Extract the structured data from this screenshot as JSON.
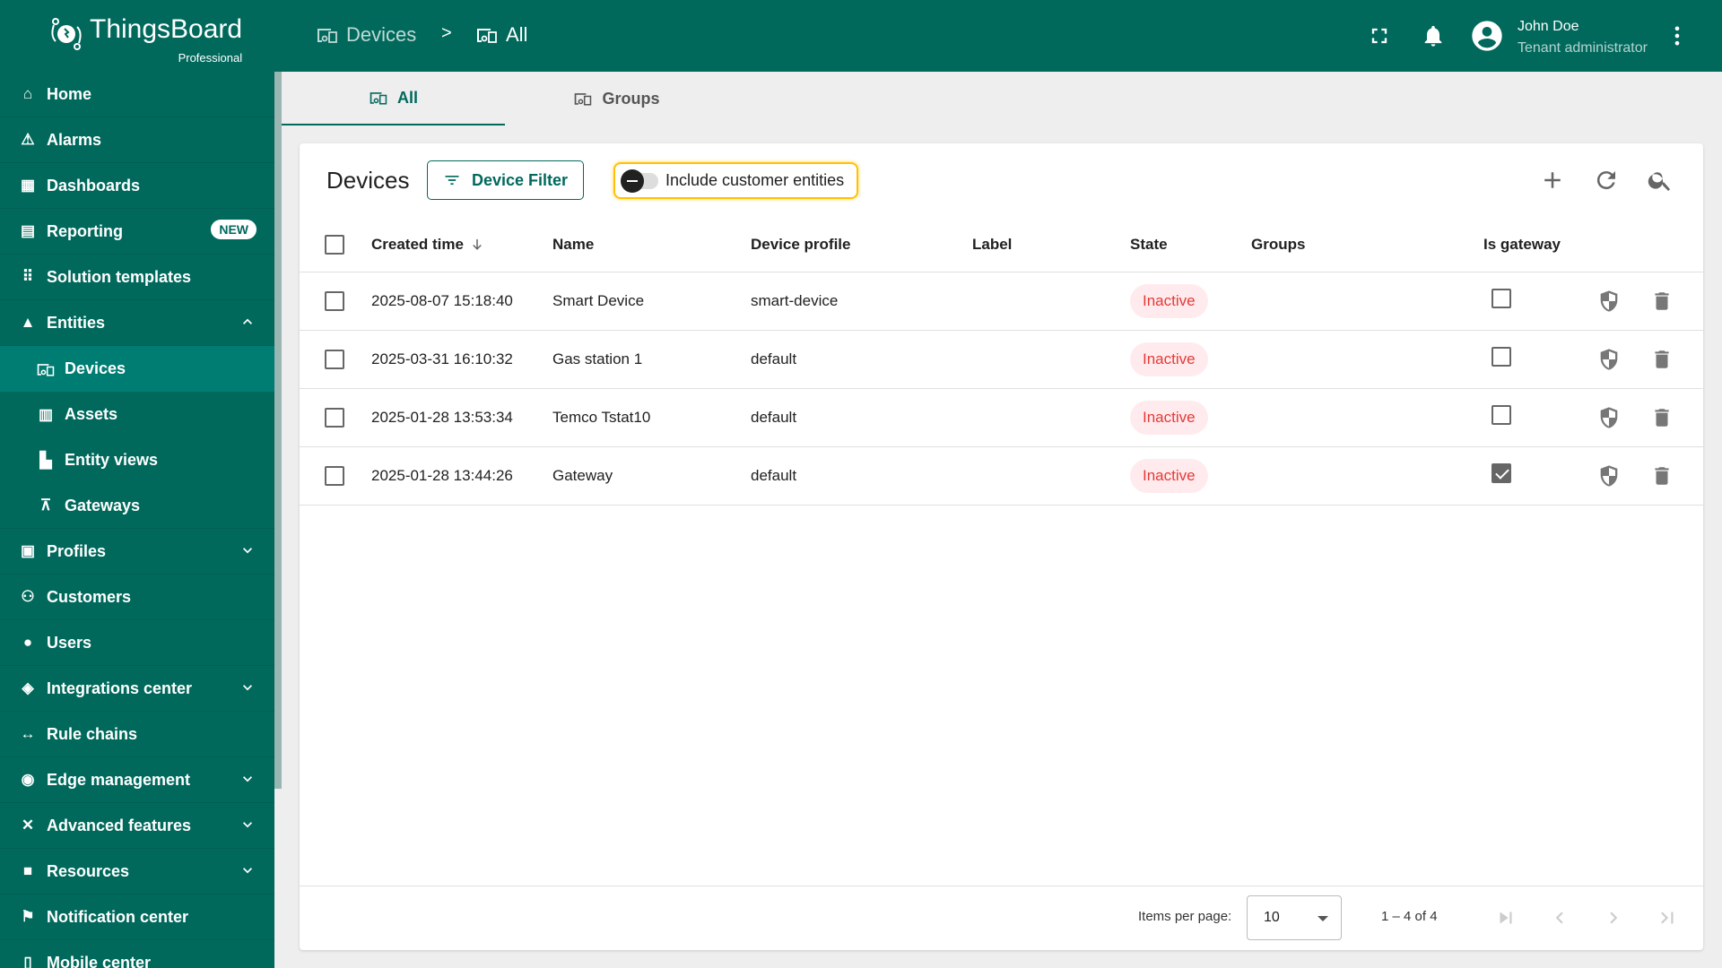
{
  "brand": {
    "name": "ThingsBoard",
    "edition": "Professional"
  },
  "colors": {
    "primary": "#00695c",
    "active_nav": "#007d72",
    "inactive_text": "#e53935",
    "inactive_bg": "#ffebee",
    "highlight": "#ffc107"
  },
  "breadcrumb": [
    {
      "label": "Devices",
      "icon": "devices-icon"
    },
    {
      "label": "All",
      "icon": "devices-icon"
    }
  ],
  "breadcrumb_sep": ">",
  "user": {
    "name": "John Doe",
    "role": "Tenant administrator"
  },
  "sidebar": {
    "items": [
      {
        "label": "Home",
        "icon": "home-icon"
      },
      {
        "label": "Alarms",
        "icon": "alarm-icon"
      },
      {
        "label": "Dashboards",
        "icon": "dashboard-icon"
      },
      {
        "label": "Reporting",
        "icon": "reporting-icon",
        "badge": "NEW"
      },
      {
        "label": "Solution templates",
        "icon": "apps-icon"
      },
      {
        "label": "Entities",
        "icon": "category-icon",
        "chevron": "up"
      },
      {
        "label": "Devices",
        "icon": "devices-icon",
        "sub": true,
        "active": true
      },
      {
        "label": "Assets",
        "icon": "assets-icon",
        "sub": true
      },
      {
        "label": "Entity views",
        "icon": "entity-views-icon",
        "sub": true
      },
      {
        "label": "Gateways",
        "icon": "gateways-icon",
        "sub": true,
        "last": true
      },
      {
        "label": "Profiles",
        "icon": "profiles-icon",
        "chevron": "down"
      },
      {
        "label": "Customers",
        "icon": "customers-icon"
      },
      {
        "label": "Users",
        "icon": "users-icon"
      },
      {
        "label": "Integrations center",
        "icon": "integrations-icon",
        "chevron": "down"
      },
      {
        "label": "Rule chains",
        "icon": "rule-chains-icon"
      },
      {
        "label": "Edge management",
        "icon": "edge-icon",
        "chevron": "down"
      },
      {
        "label": "Advanced features",
        "icon": "tools-icon",
        "chevron": "down"
      },
      {
        "label": "Resources",
        "icon": "folder-icon",
        "chevron": "down"
      },
      {
        "label": "Notification center",
        "icon": "notification-icon"
      },
      {
        "label": "Mobile center",
        "icon": "mobile-icon"
      }
    ]
  },
  "tabs": [
    {
      "label": "All",
      "active": true
    },
    {
      "label": "Groups"
    }
  ],
  "card": {
    "title": "Devices",
    "filter_label": "Device Filter",
    "toggle_label": "Include customer entities",
    "toggle_on": false
  },
  "table": {
    "columns": [
      "Created time",
      "Name",
      "Device profile",
      "Label",
      "State",
      "Groups",
      "Is gateway"
    ],
    "sort": "Created time descending",
    "rows": [
      {
        "created": "2025-08-07 15:18:40",
        "name": "Smart Device",
        "profile": "smart-device",
        "label": "",
        "state": "Inactive",
        "groups": "",
        "gateway": false
      },
      {
        "created": "2025-03-31 16:10:32",
        "name": "Gas station 1",
        "profile": "default",
        "label": "",
        "state": "Inactive",
        "groups": "",
        "gateway": false
      },
      {
        "created": "2025-01-28 13:53:34",
        "name": "Temco Tstat10",
        "profile": "default",
        "label": "",
        "state": "Inactive",
        "groups": "",
        "gateway": false
      },
      {
        "created": "2025-01-28 13:44:26",
        "name": "Gateway",
        "profile": "default",
        "label": "",
        "state": "Inactive",
        "groups": "",
        "gateway": true
      }
    ]
  },
  "pager": {
    "items_label": "Items per page:",
    "page_size": "10",
    "range": "1 – 4 of 4"
  }
}
